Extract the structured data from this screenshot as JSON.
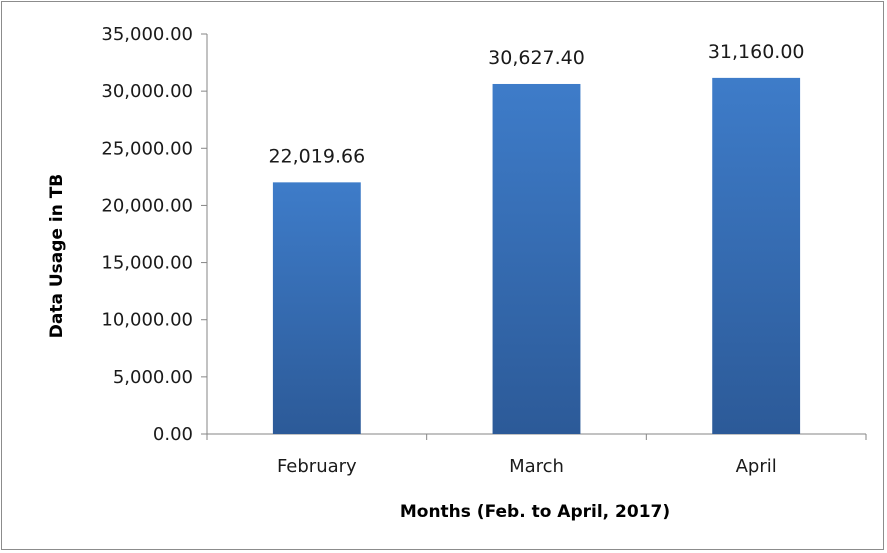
{
  "chart_data": {
    "type": "bar",
    "title": "",
    "xlabel": "Months (Feb. to April, 2017)",
    "ylabel": "Data Usage in TB",
    "categories": [
      "February",
      "March",
      "April"
    ],
    "values": [
      22019.66,
      30627.4,
      31160.0
    ],
    "value_labels": [
      "22,019.66",
      "30,627.40",
      "31,160.00"
    ],
    "ylim": [
      0,
      35000
    ],
    "yticks": [
      0,
      5000,
      10000,
      15000,
      20000,
      25000,
      30000,
      35000
    ],
    "ytick_labels": [
      "0.00",
      "5,000.00",
      "10,000.00",
      "15,000.00",
      "20,000.00",
      "25,000.00",
      "30,000.00",
      "35,000.00"
    ],
    "grid": false,
    "legend": "none",
    "colors": {
      "bar_top": "#3e7cc9",
      "bar_bottom": "#2c5a98",
      "axis": "#868686"
    }
  }
}
